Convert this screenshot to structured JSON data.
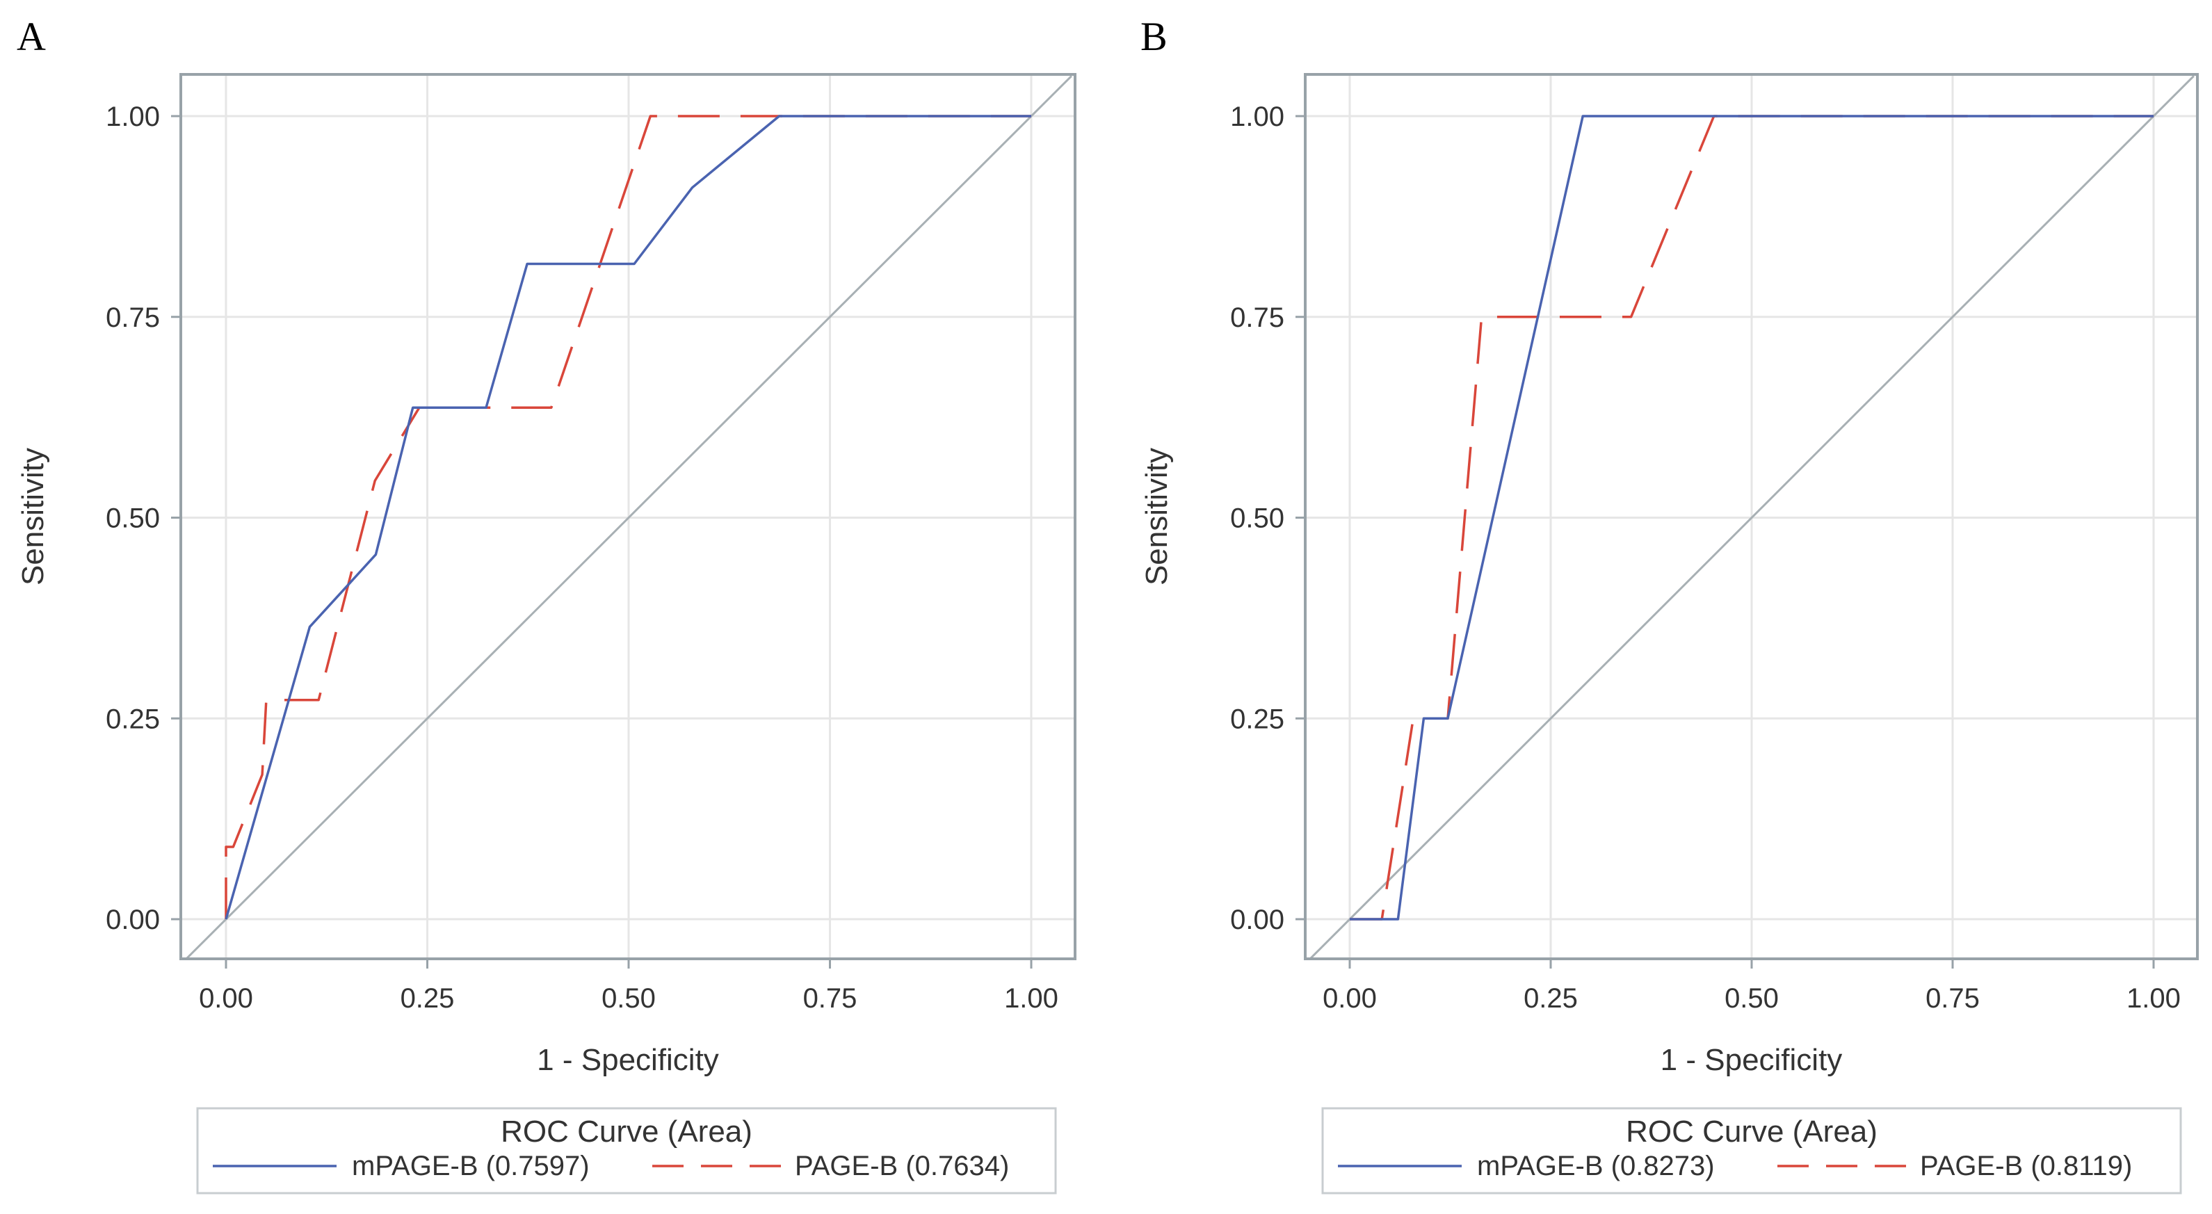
{
  "colors": {
    "mpage_b": "#4a63b0",
    "page_b": "#d9463a",
    "diagonal": "#a8b0b4",
    "grid": "#e6e6e6",
    "frame": "#98a2a8"
  },
  "chart_data": [
    {
      "panel": "A",
      "type": "line",
      "xlabel": "1 - Specificity",
      "ylabel": "Sensitivity",
      "xlim": [
        0,
        1
      ],
      "ylim": [
        0,
        1
      ],
      "xticks": [
        "0.00",
        "0.25",
        "0.50",
        "0.75",
        "1.00"
      ],
      "yticks": [
        "0.00",
        "0.25",
        "0.50",
        "0.75",
        "1.00"
      ],
      "grid": true,
      "legend": {
        "title": "ROC Curve (Area)",
        "position": "bottom",
        "entries": [
          {
            "name": "mPAGE-B",
            "value": "(0.7597)",
            "style": "solid"
          },
          {
            "name": "PAGE-B",
            "value": "(0.7634)",
            "style": "dashed"
          }
        ]
      },
      "series": [
        {
          "name": "mPAGE-B",
          "style": "solid",
          "x": [
            0,
            0.104,
            0.186,
            0.232,
            0.323,
            0.374,
            0.507,
            0.579,
            0.687,
            1
          ],
          "y": [
            0,
            0.364,
            0.454,
            0.637,
            0.637,
            0.816,
            0.816,
            0.911,
            1,
            1
          ]
        },
        {
          "name": "PAGE-B",
          "style": "dashed",
          "x": [
            0,
            0,
            0.009,
            0.045,
            0.05,
            0.115,
            0.185,
            0.24,
            0.404,
            0.527,
            1
          ],
          "y": [
            0,
            0.09,
            0.09,
            0.18,
            0.273,
            0.273,
            0.546,
            0.637,
            0.637,
            1,
            1
          ]
        },
        {
          "name": "Reference",
          "style": "diagonal",
          "x": [
            -0.05,
            1.05
          ],
          "y": [
            -0.05,
            1.05
          ]
        }
      ]
    },
    {
      "panel": "B",
      "type": "line",
      "xlabel": "1 - Specificity",
      "ylabel": "Sensitivity",
      "xlim": [
        0,
        1
      ],
      "ylim": [
        0,
        1
      ],
      "xticks": [
        "0.00",
        "0.25",
        "0.50",
        "0.75",
        "1.00"
      ],
      "yticks": [
        "0.00",
        "0.25",
        "0.50",
        "0.75",
        "1.00"
      ],
      "grid": true,
      "legend": {
        "title": "ROC Curve (Area)",
        "position": "bottom",
        "entries": [
          {
            "name": "mPAGE-B",
            "value": "(0.8273)",
            "style": "solid"
          },
          {
            "name": "PAGE-B",
            "value": "(0.8119)",
            "style": "dashed"
          }
        ]
      },
      "series": [
        {
          "name": "mPAGE-B",
          "style": "solid",
          "x": [
            0,
            0.06,
            0.092,
            0.122,
            0.29,
            1
          ],
          "y": [
            0,
            0,
            0.25,
            0.25,
            1,
            1
          ]
        },
        {
          "name": "PAGE-B",
          "style": "dashed",
          "x": [
            0,
            0.04,
            0.079,
            0.122,
            0.164,
            0.35,
            0.453,
            1
          ],
          "y": [
            0,
            0,
            0.25,
            0.25,
            0.75,
            0.75,
            1,
            1
          ]
        },
        {
          "name": "Reference",
          "style": "diagonal",
          "x": [
            -0.05,
            1.05
          ],
          "y": [
            -0.05,
            1.05
          ]
        }
      ]
    }
  ]
}
